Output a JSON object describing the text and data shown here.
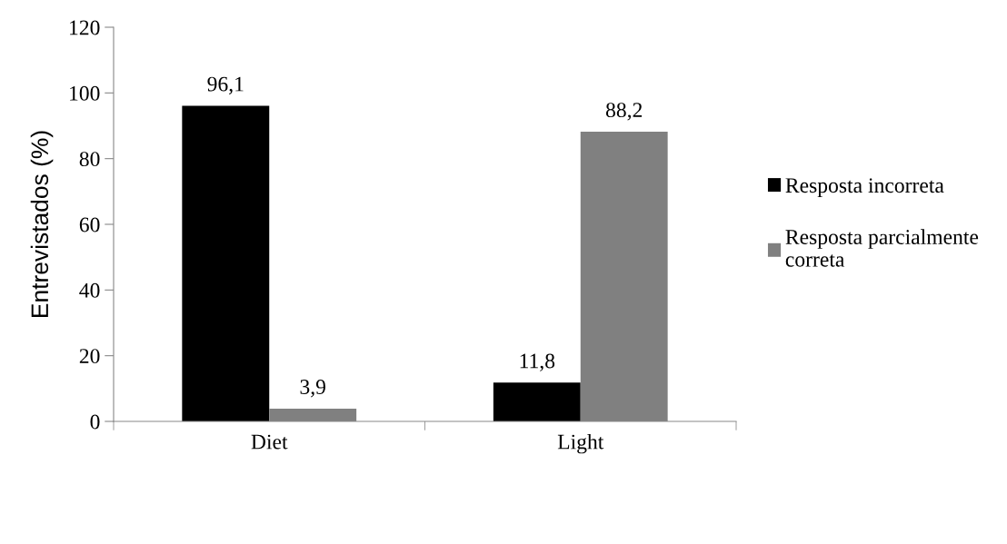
{
  "chart_data": {
    "type": "bar",
    "ylabel": "Entrevistados (%)",
    "categories": [
      "Diet",
      "Light"
    ],
    "series": [
      {
        "name": "Resposta incorreta",
        "color": "#000000",
        "values": [
          96.1,
          11.8
        ],
        "value_labels": [
          "96,1",
          "11,8"
        ]
      },
      {
        "name": "Resposta parcialmente\ncorreta",
        "color": "#808080",
        "values": [
          3.9,
          88.2
        ],
        "value_labels": [
          "3,9",
          "88,2"
        ]
      }
    ],
    "ylim": [
      0,
      120
    ],
    "yticks": [
      0,
      20,
      40,
      60,
      80,
      100,
      120
    ],
    "grid": false,
    "legend": "right"
  }
}
